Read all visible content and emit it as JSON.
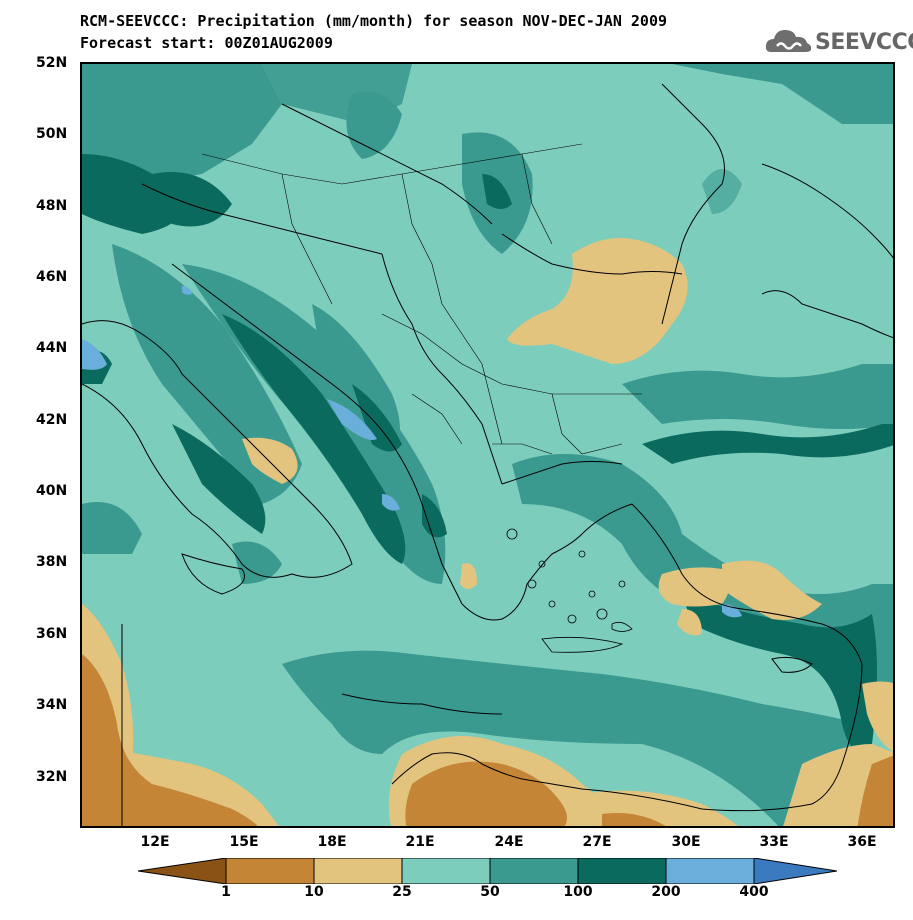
{
  "title": {
    "line1": "RCM-SEEVCCC: Precipitation (mm/month) for season NOV-DEC-JAN 2009",
    "line2": "Forecast start: 00Z01AUG2009"
  },
  "logo": {
    "text": "SEEVCCC",
    "icon": "cloud-icon"
  },
  "map": {
    "lat_labels": [
      "52N",
      "50N",
      "48N",
      "46N",
      "44N",
      "42N",
      "40N",
      "38N",
      "36N",
      "34N",
      "32N"
    ],
    "lon_labels": [
      "12E",
      "15E",
      "18E",
      "21E",
      "24E",
      "27E",
      "30E",
      "33E",
      "36E"
    ]
  },
  "colorbar": {
    "labels": [
      "1",
      "10",
      "25",
      "50",
      "100",
      "200",
      "400"
    ],
    "colors": [
      "#8b5216",
      "#c48536",
      "#e2c47f",
      "#7dcdbd",
      "#3b9a8f",
      "#0b6a5e",
      "#6aaedc",
      "#3a7bbf"
    ]
  },
  "colors": {
    "dry_dark": "#c48536",
    "dry_light": "#e2c47f",
    "mid": "#7dcdbd",
    "wet": "#3b9a8f",
    "very_wet": "#0b6a5e",
    "extreme": "#6aaedc"
  }
}
